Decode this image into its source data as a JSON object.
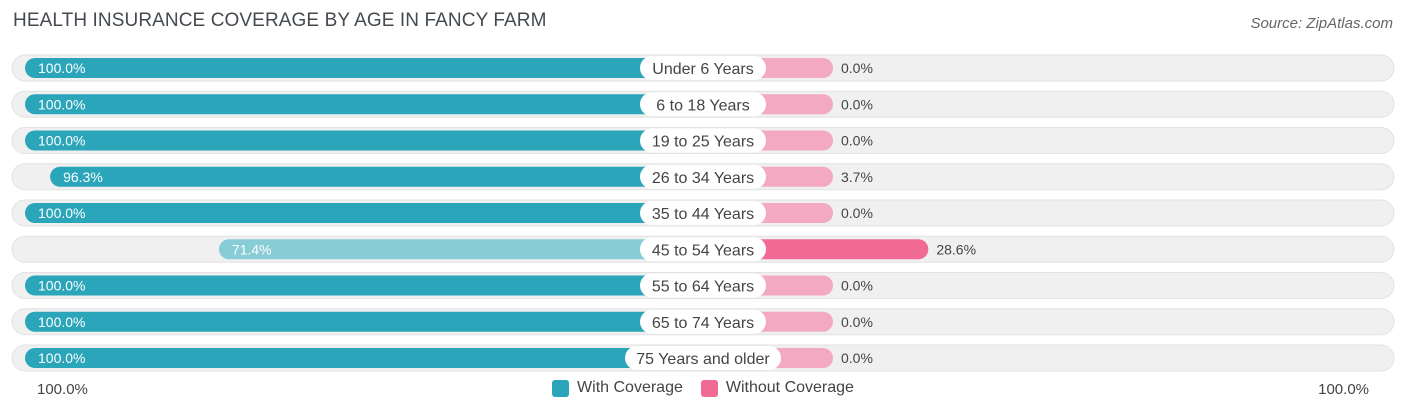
{
  "header": {
    "title": "HEALTH INSURANCE COVERAGE BY AGE IN FANCY FARM",
    "source": "Source: ZipAtlas.com"
  },
  "colors": {
    "with_coverage": "#2ba5b9",
    "with_coverage_light": "#88cdd6",
    "without_coverage": "#f4a9c2",
    "without_coverage_strong": "#f06a93",
    "track": "#f0f0f0"
  },
  "axis": {
    "left_label": "100.0%",
    "right_label": "100.0%"
  },
  "legend": {
    "with_label": "With Coverage",
    "without_label": "Without Coverage"
  },
  "chart_data": {
    "type": "bar",
    "title": "HEALTH INSURANCE COVERAGE BY AGE IN FANCY FARM",
    "orientation": "horizontal-diverging",
    "categories": [
      "Under 6 Years",
      "6 to 18 Years",
      "19 to 25 Years",
      "26 to 34 Years",
      "35 to 44 Years",
      "45 to 54 Years",
      "55 to 64 Years",
      "65 to 74 Years",
      "75 Years and older"
    ],
    "series": [
      {
        "name": "With Coverage",
        "values": [
          100.0,
          100.0,
          100.0,
          96.3,
          100.0,
          71.4,
          100.0,
          100.0,
          100.0
        ],
        "labels": [
          "100.0%",
          "100.0%",
          "100.0%",
          "96.3%",
          "100.0%",
          "71.4%",
          "100.0%",
          "100.0%",
          "100.0%"
        ]
      },
      {
        "name": "Without Coverage",
        "values": [
          0.0,
          0.0,
          0.0,
          3.7,
          0.0,
          28.6,
          0.0,
          0.0,
          0.0
        ],
        "labels": [
          "0.0%",
          "0.0%",
          "0.0%",
          "3.7%",
          "0.0%",
          "28.6%",
          "0.0%",
          "0.0%",
          "0.0%"
        ]
      }
    ],
    "xlim": [
      0,
      100
    ],
    "legend_position": "bottom-center"
  }
}
